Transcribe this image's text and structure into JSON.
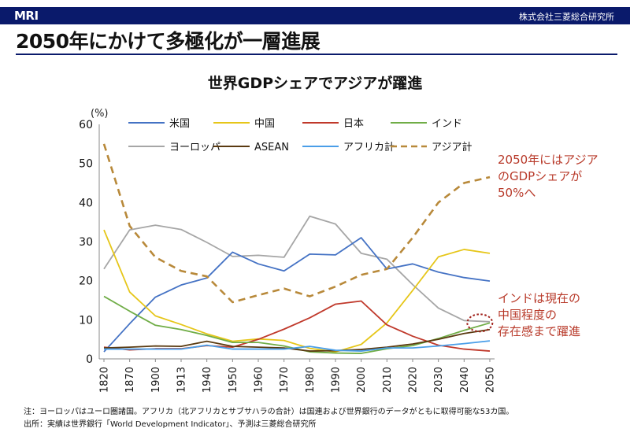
{
  "header": {
    "logo": "MRI",
    "company": "株式会社三菱総合研究所"
  },
  "headline": "2050年にかけて多極化が一層進展",
  "chart_data": {
    "type": "line",
    "title": "世界GDPシェアでアジアが躍進",
    "ylabel": "(%)",
    "xlabel": "",
    "ylim": [
      0,
      60
    ],
    "yticks": [
      0,
      10,
      20,
      30,
      40,
      50,
      60
    ],
    "categories": [
      "1820",
      "1870",
      "1900",
      "1913",
      "1940",
      "1950",
      "1960",
      "1970",
      "1980",
      "1990",
      "2000",
      "2010",
      "2020",
      "2030",
      "2040",
      "2050"
    ],
    "series": [
      {
        "name": "米国",
        "color": "#4472c4",
        "dashed": false,
        "values": [
          1.8,
          9,
          15.8,
          18.9,
          20.7,
          27.3,
          24.3,
          22.5,
          26.8,
          26.6,
          31,
          23,
          24.3,
          22.2,
          20.8,
          19.9
        ]
      },
      {
        "name": "中国",
        "color": "#e6c619",
        "dashed": false,
        "values": [
          33,
          17.1,
          11,
          8.8,
          6.4,
          4.5,
          5.1,
          4.7,
          2.7,
          1.8,
          3.7,
          9.2,
          17.5,
          26.1,
          28,
          27
        ]
      },
      {
        "name": "日本",
        "color": "#c0392b",
        "dashed": false,
        "values": [
          3,
          2.3,
          2.6,
          2.6,
          3.4,
          3,
          5,
          7.6,
          10.5,
          14,
          14.8,
          8.7,
          5.8,
          3.5,
          2.5,
          2
        ]
      },
      {
        "name": "インド",
        "color": "#70ad47",
        "dashed": false,
        "values": [
          16,
          12.2,
          8.6,
          7.5,
          6,
          4.2,
          4.2,
          3.3,
          1.8,
          1.5,
          1.4,
          2.6,
          3.4,
          5.2,
          7.3,
          9.2
        ]
      },
      {
        "name": "ヨーロッパ",
        "color": "#a6a6a6",
        "dashed": false,
        "values": [
          23,
          33,
          34.2,
          33.1,
          29.8,
          26.2,
          26.5,
          26,
          36.5,
          34.5,
          27,
          25.5,
          19,
          13,
          9.8,
          9.5
        ]
      },
      {
        "name": "ASEAN",
        "color": "#5a3a10",
        "dashed": false,
        "values": [
          2.8,
          3,
          3.3,
          3.2,
          4.5,
          3.2,
          3,
          2.8,
          2,
          2.1,
          2.4,
          3,
          3.8,
          5,
          6.5,
          7.5
        ]
      },
      {
        "name": "アフリカ計",
        "color": "#4a9ee8",
        "dashed": false,
        "values": [
          2.5,
          2.5,
          2.5,
          2.5,
          3.5,
          2.5,
          2.5,
          2.5,
          3.2,
          2.2,
          2,
          2.8,
          2.8,
          3.3,
          3.9,
          4.6
        ]
      },
      {
        "name": "アジア計",
        "color": "#b8893a",
        "dashed": true,
        "values": [
          55,
          34,
          26,
          22.5,
          21.1,
          14.5,
          16.3,
          18,
          16,
          18.5,
          21.5,
          23,
          31,
          40,
          45,
          46.5
        ]
      }
    ],
    "annotations": [
      {
        "lines": [
          "2050年にはアジア",
          "のGDPシェアが",
          "50%へ"
        ],
        "color": "#b83a2a"
      },
      {
        "lines": [
          "インドは現在の",
          "中国程度の",
          "存在感まで躍進"
        ],
        "color": "#b83a2a"
      }
    ],
    "notes": [
      "注：ヨーロッパはユーロ圏諸国。アフリカ（北アフリカとサブサハラの合計）は国連および世界銀行のデータがともに取得可能な53カ国。",
      "出所：実績は世界銀行「World Development Indicator」、予測は三菱総合研究所"
    ]
  }
}
